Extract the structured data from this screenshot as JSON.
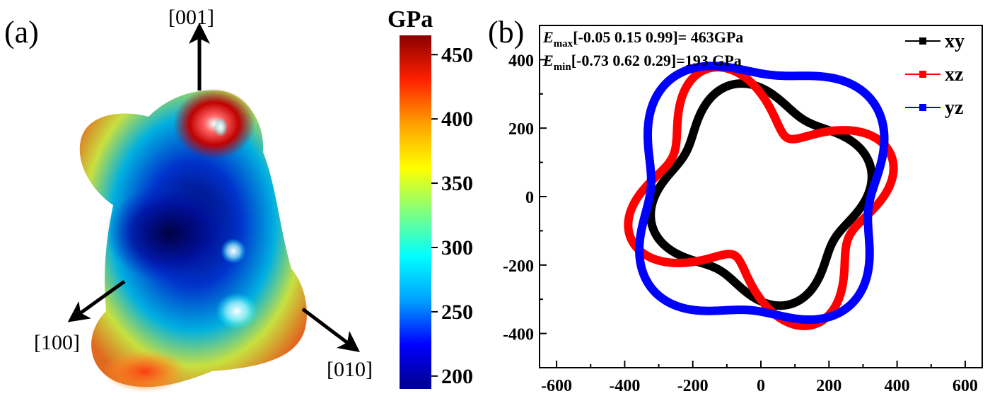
{
  "panel_a": {
    "label": "(a)",
    "directions": {
      "z": "[001]",
      "x": "[100]",
      "y": "[010]"
    },
    "colorbar": {
      "title": "GPa",
      "ticks": [
        "450",
        "400",
        "350",
        "300",
        "250",
        "200"
      ],
      "range": [
        190,
        465
      ],
      "colormap": [
        "#00008b",
        "#0000ff",
        "#00a0ff",
        "#00ffff",
        "#80ff80",
        "#ffff00",
        "#ffa000",
        "#ff2000",
        "#8b0000"
      ]
    }
  },
  "panel_b": {
    "label": "(b)",
    "annotations": [
      {
        "symbol": "E",
        "sub": "max",
        "text": "[-0.05 0.15 0.99]= 463GPa"
      },
      {
        "symbol": "E",
        "sub": "min",
        "text": "[-0.73 0.62  0.29]=193 GPa"
      }
    ]
  },
  "chart_data": {
    "type": "line",
    "xlim": [
      -650,
      650
    ],
    "ylim": [
      -500,
      500
    ],
    "xticks": [
      -600,
      -400,
      -200,
      0,
      200,
      400,
      600
    ],
    "yticks": [
      -400,
      -200,
      0,
      200,
      400
    ],
    "xtick_labels": [
      "-600",
      "-400",
      "-200",
      "0",
      "200",
      "400",
      "600"
    ],
    "ytick_labels": [
      "-400",
      "-200",
      "0",
      "200",
      "400"
    ],
    "legend_position": "top-right",
    "grid": false,
    "series": [
      {
        "name": "xy",
        "color": "#000000",
        "polar": {
          "r0": 292,
          "a2": 0,
          "p2": 0,
          "a4": 40,
          "p4": 60,
          "a1": 6,
          "p1": 90
        }
      },
      {
        "name": "xz",
        "color": "#ff0000",
        "polar": {
          "r0": 318,
          "a2": -48,
          "p2": 128,
          "a4": 82,
          "p4": 81,
          "a1": 0,
          "p1": 0
        }
      },
      {
        "name": "yz",
        "color": "#0000ff",
        "polar": {
          "r0": 378,
          "a2": -12,
          "p2": -15,
          "a4": 45,
          "p4": 158,
          "a1": 12,
          "p1": 100
        }
      }
    ]
  }
}
